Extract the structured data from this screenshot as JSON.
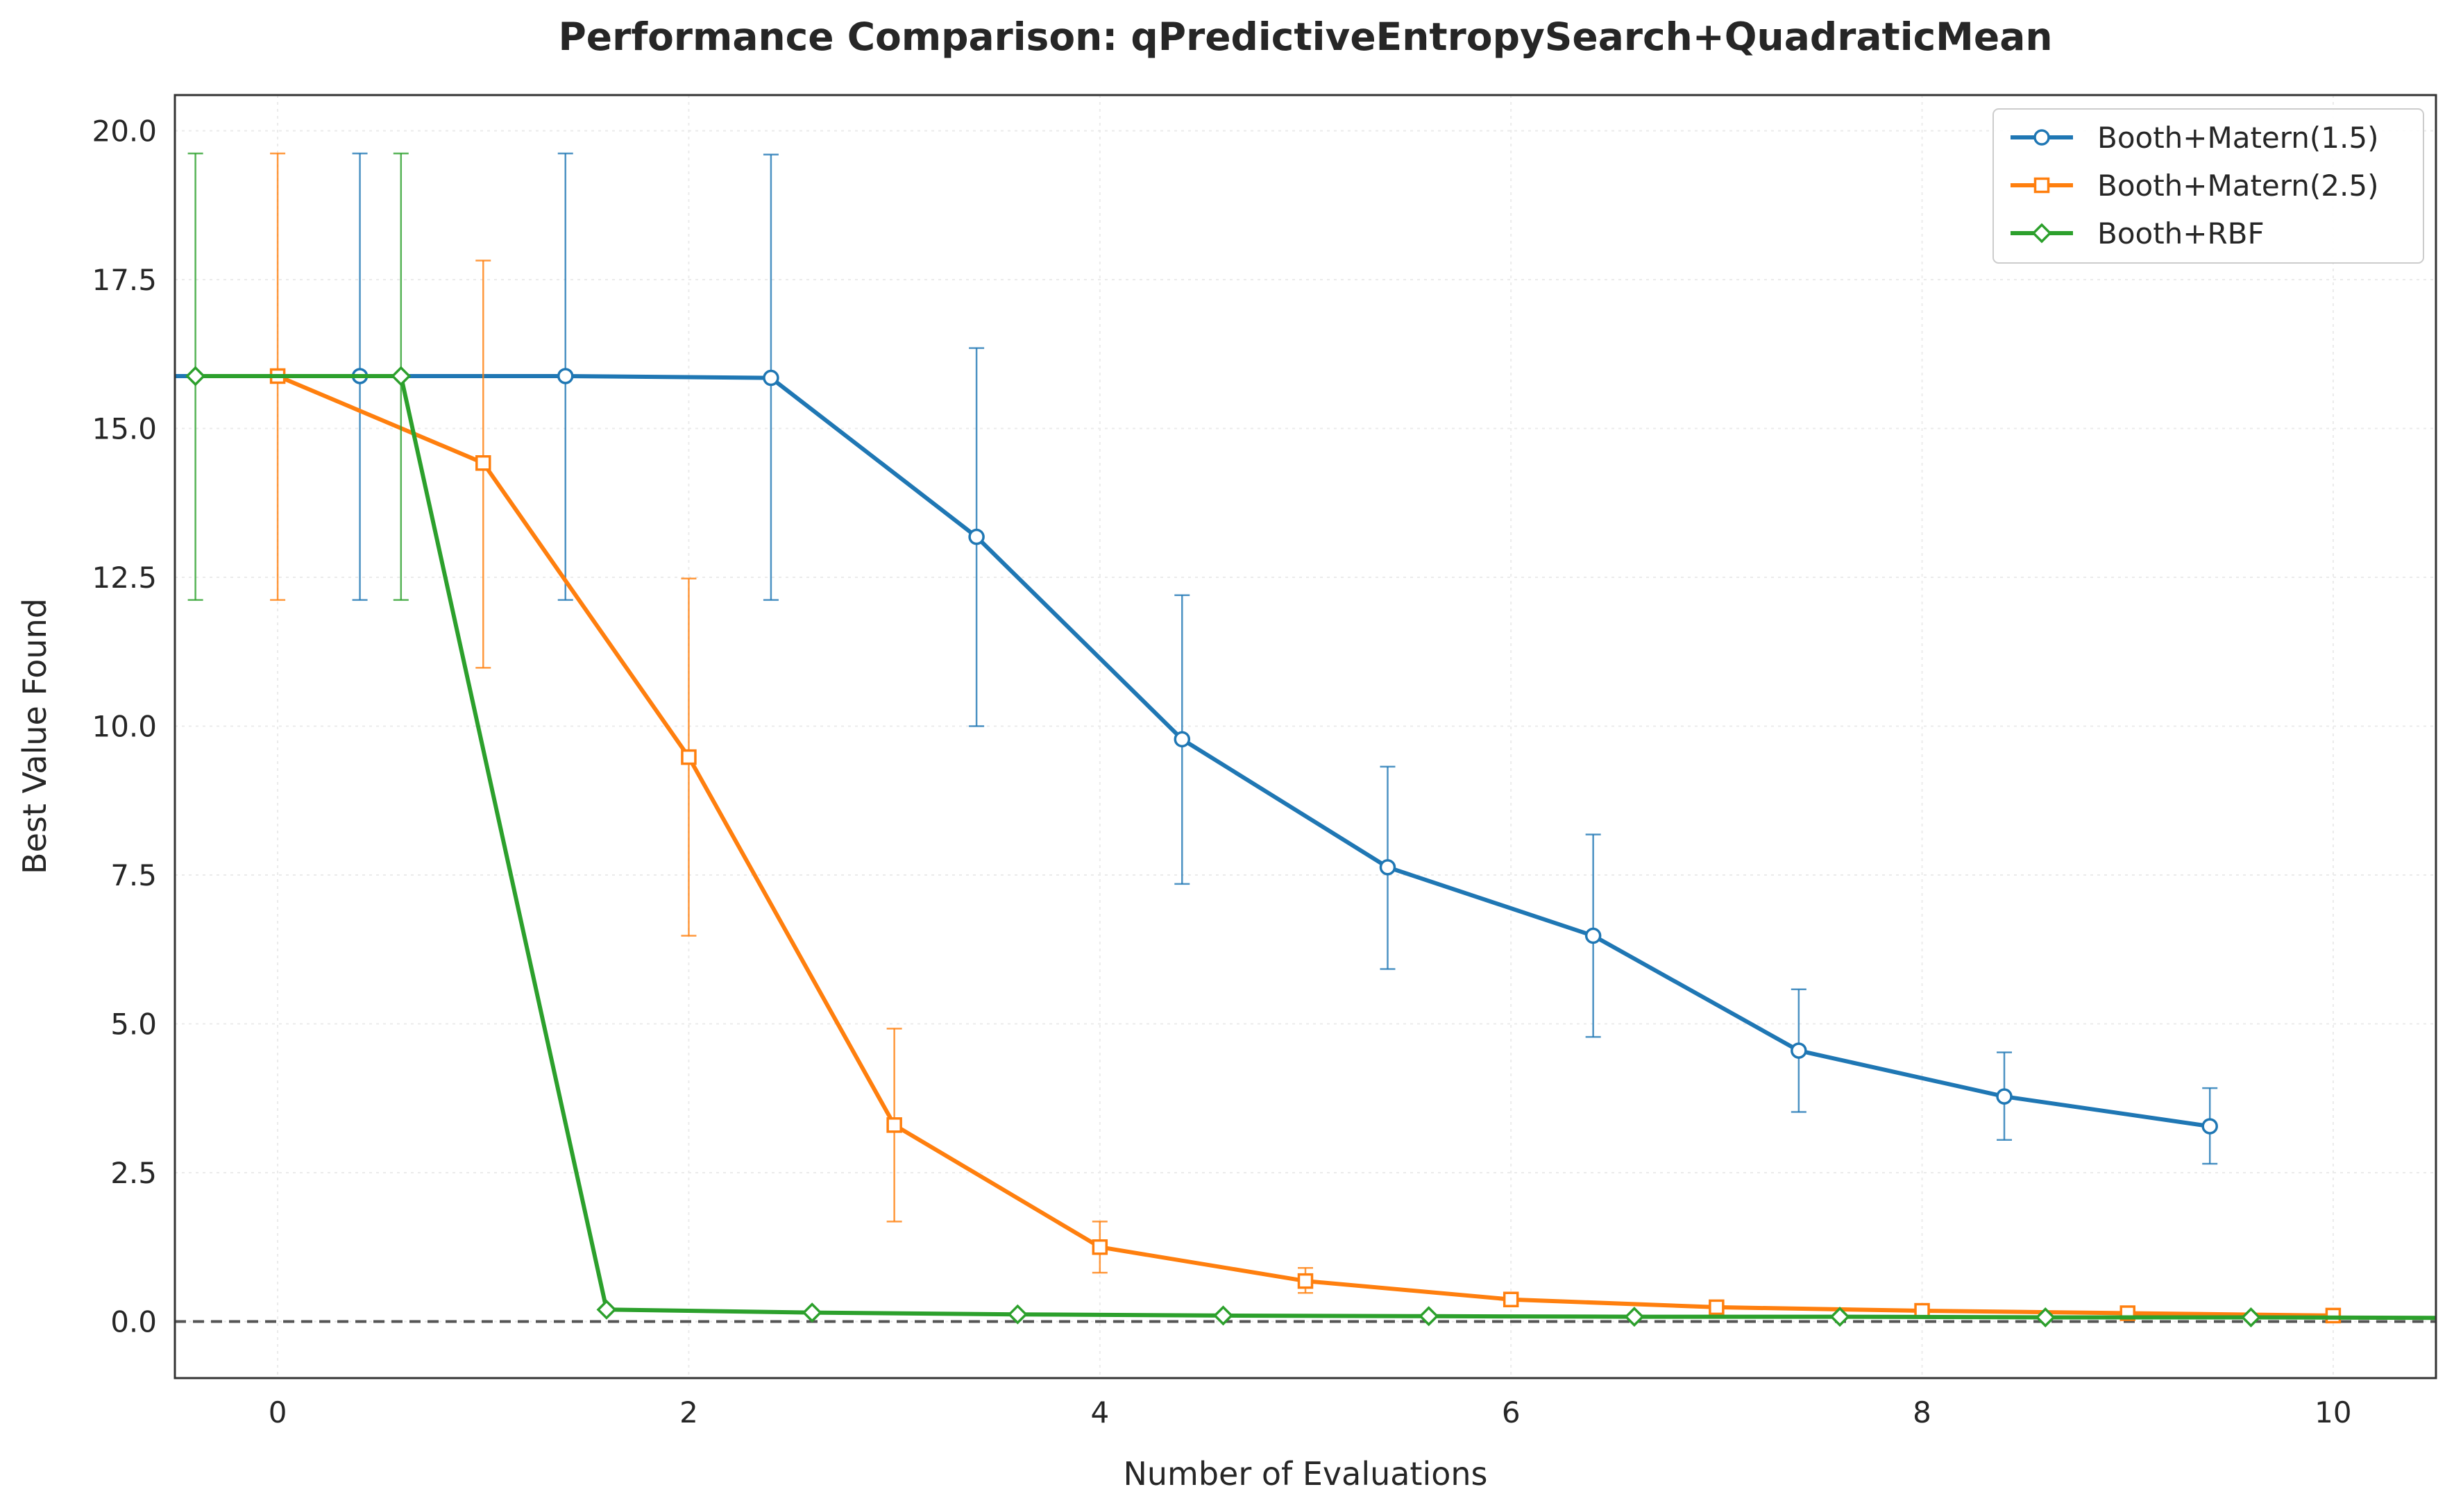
{
  "chart_data": {
    "type": "line",
    "title": "Performance Comparison: qPredictiveEntropySearch+QuadraticMean",
    "xlabel": "Number of Evaluations",
    "ylabel": "Best Value Found",
    "xlim": [
      -0.5,
      10.5
    ],
    "ylim": [
      -0.95,
      20.6
    ],
    "xticks": [
      0,
      2,
      4,
      6,
      8,
      10
    ],
    "xtick_labels": [
      "0",
      "2",
      "4",
      "6",
      "8",
      "10"
    ],
    "yticks": [
      0,
      2.5,
      5,
      7.5,
      10,
      12.5,
      15,
      17.5,
      20
    ],
    "ytick_labels": [
      "0.0",
      "2.5",
      "5.0",
      "7.5",
      "10.0",
      "12.5",
      "15.0",
      "17.5",
      "20.0"
    ],
    "grid": true,
    "legend_position": "top-right",
    "reference_line": {
      "y": 0,
      "style": "dashed",
      "color": "#555555"
    },
    "series": [
      {
        "name": "Booth+Matern(1.5)",
        "color": "#1f77b4",
        "marker": "circle",
        "x": [
          -0.6,
          0.4,
          1.4,
          2.4,
          3.4,
          4.4,
          5.4,
          6.4,
          7.4,
          8.4,
          9.4
        ],
        "y": [
          15.88,
          15.88,
          15.88,
          15.85,
          13.18,
          9.78,
          7.63,
          6.48,
          4.55,
          3.78,
          3.28
        ],
        "err_low": [
          12.12,
          12.12,
          12.12,
          12.12,
          10.0,
          7.35,
          5.92,
          4.78,
          3.52,
          3.05,
          2.65
        ],
        "err_high": [
          19.62,
          19.62,
          19.62,
          19.6,
          16.35,
          12.2,
          9.32,
          8.18,
          5.58,
          4.52,
          3.92
        ]
      },
      {
        "name": "Booth+Matern(2.5)",
        "color": "#ff7f0e",
        "marker": "square",
        "x": [
          0,
          1,
          2,
          3,
          4,
          5,
          6,
          7,
          8,
          9,
          10
        ],
        "y": [
          15.88,
          14.42,
          9.48,
          3.3,
          1.25,
          0.68,
          0.37,
          0.24,
          0.18,
          0.14,
          0.1
        ],
        "err_low": [
          12.12,
          10.98,
          6.48,
          1.68,
          0.82,
          0.48,
          0.29,
          0.2,
          0.15,
          0.12,
          0.08
        ],
        "err_high": [
          19.62,
          17.82,
          12.48,
          4.92,
          1.68,
          0.9,
          0.45,
          0.28,
          0.21,
          0.16,
          0.12
        ]
      },
      {
        "name": "Booth+RBF",
        "color": "#2ca02c",
        "marker": "diamond",
        "x": [
          -0.4,
          0.6,
          1.6,
          2.6,
          3.6,
          4.6,
          5.6,
          6.6,
          7.6,
          8.6,
          9.6,
          10.6
        ],
        "y": [
          15.88,
          15.88,
          0.2,
          0.15,
          0.12,
          0.1,
          0.09,
          0.08,
          0.08,
          0.07,
          0.07,
          0.06
        ],
        "err_low": [
          12.12,
          12.12,
          0.2,
          0.15,
          0.12,
          0.1,
          0.09,
          0.08,
          0.08,
          0.07,
          0.07,
          0.06
        ],
        "err_high": [
          19.62,
          19.62,
          0.2,
          0.15,
          0.12,
          0.1,
          0.09,
          0.08,
          0.08,
          0.07,
          0.07,
          0.06
        ]
      }
    ]
  }
}
